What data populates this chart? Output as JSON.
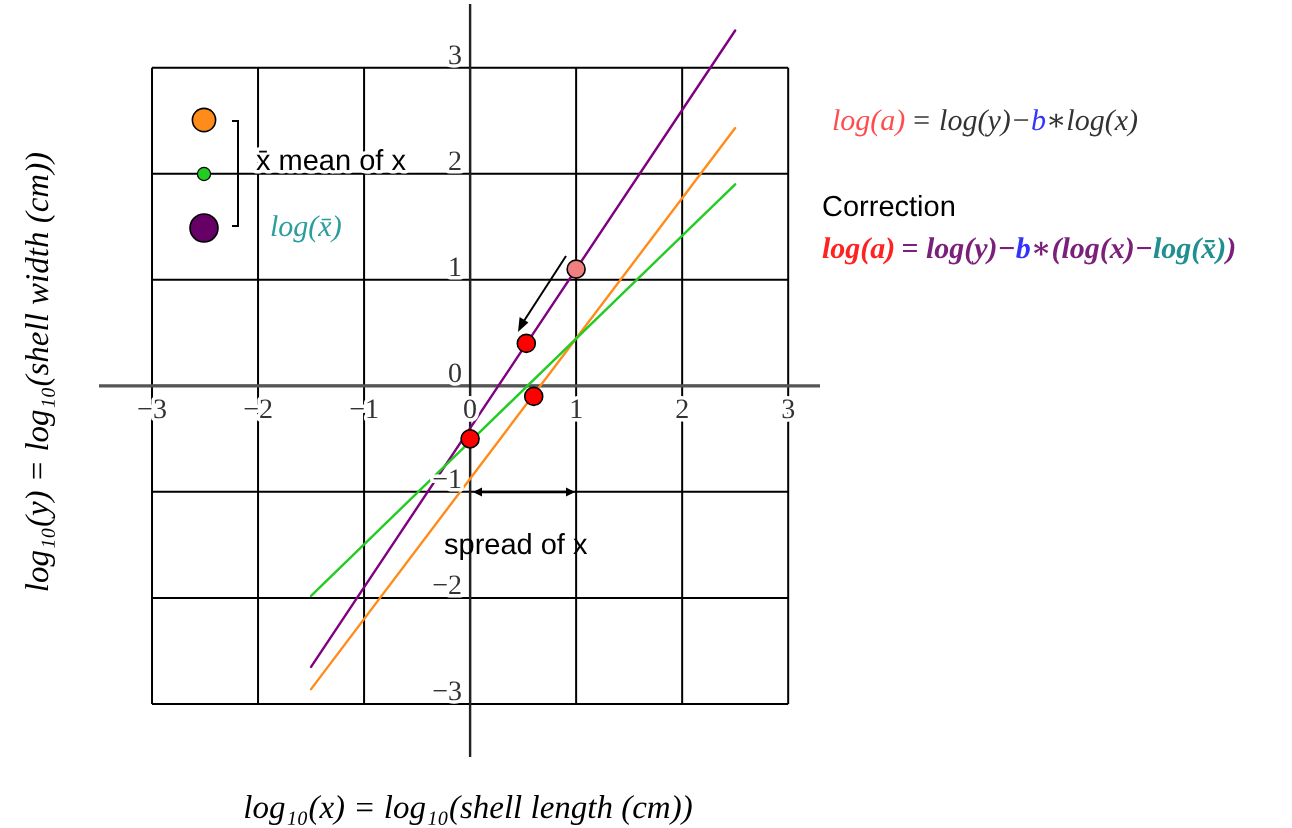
{
  "chart_data": {
    "type": "line",
    "xlabel": "log₁₀(x) = log₁₀(shell length (cm))",
    "ylabel": "log₁₀(y) = log₁₀(shell width (cm))",
    "xlim": [
      -3.5,
      3.3
    ],
    "ylim": [
      -3.5,
      3.6
    ],
    "xticks": [
      -3,
      -2,
      -1,
      0,
      1,
      2,
      3
    ],
    "yticks": [
      -3,
      -2,
      -1,
      0,
      1,
      2,
      3
    ],
    "grid": true,
    "series": [
      {
        "color": "#800080",
        "x": [
          -1.5,
          2.5
        ],
        "values": [
          -2.65,
          3.35
        ]
      },
      {
        "color": "#ff8c1a",
        "x": [
          -1.5,
          2.5
        ],
        "values": [
          -2.86,
          2.43
        ]
      },
      {
        "color": "#22cc22",
        "x": [
          -1.5,
          2.5
        ],
        "values": [
          -1.98,
          1.9
        ]
      },
      {
        "type": "scatter",
        "marker": "circle",
        "x": [
          1,
          0.53,
          0.6,
          0
        ],
        "values": [
          1.1,
          0.4,
          -0.1,
          -0.5
        ],
        "colors": [
          "#f08080",
          "#ff0000",
          "#ff0000",
          "#ff0000"
        ]
      }
    ],
    "annotations": [
      "x̄ mean of x",
      "log(x̄)",
      "spread of x",
      "log(a)",
      "= log(y)−",
      "b",
      "∗log(x)",
      "Correction",
      "log(a)",
      "= log(y)−",
      "b",
      "∗(log(x)−",
      "log(x̄)",
      ")"
    ]
  }
}
